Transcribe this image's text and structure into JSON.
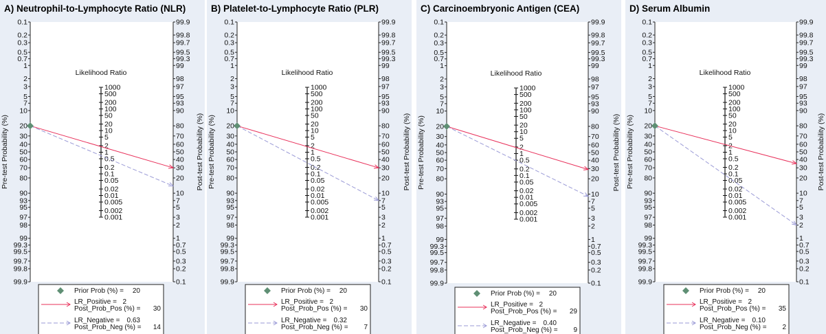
{
  "chart_data": [
    {
      "type": "nomogram",
      "title": "A) Neutrophil-to-Lymphocyte Ratio (NLR)",
      "left_axis_label": "Pre-test Probability (%)",
      "right_axis_label": "Post-test Probability (%)",
      "middle_axis_label": "Likelihood Ratio",
      "pre_ticks": [
        "0.1",
        "0.2",
        "0.3",
        "0.5",
        "0.7",
        "1",
        "2",
        "3",
        "5",
        "7",
        "10",
        "20",
        "30",
        "40",
        "50",
        "60",
        "70",
        "80",
        "90",
        "93",
        "95",
        "97",
        "98",
        "99",
        "99.3",
        "99.5",
        "99.7",
        "99.8",
        "99.9"
      ],
      "post_ticks": [
        "99.9",
        "99.8",
        "99.7",
        "99.5",
        "99.3",
        "99",
        "98",
        "97",
        "95",
        "93",
        "90",
        "80",
        "70",
        "60",
        "50",
        "40",
        "30",
        "20",
        "10",
        "7",
        "5",
        "3",
        "2",
        "1",
        "0.7",
        "0.5",
        "0.3",
        "0.2",
        "0.1"
      ],
      "lr_ticks": [
        "1000",
        "500",
        "200",
        "100",
        "50",
        "20",
        "10",
        "5",
        "2",
        "1",
        "0.5",
        "0.2",
        "0.1",
        "0.05",
        "0.02",
        "0.01",
        "0.005",
        "0.002",
        "0.001"
      ],
      "prior_prob": 20,
      "lr_positive": 2,
      "post_prob_pos": 30,
      "lr_negative": 0.63,
      "post_prob_neg": 14,
      "legend": {
        "prior": "Prior Prob (%) =",
        "prior_value": "20",
        "lr_pos": "LR_Positive =",
        "lr_pos_value": "2",
        "post_pos": "Post_Prob_Pos (%) =",
        "post_pos_value": "30",
        "lr_neg": "LR_Negative =",
        "lr_neg_value": "0.63",
        "post_neg": "Post_Prob_Neg (%) =",
        "post_neg_value": "14"
      }
    },
    {
      "type": "nomogram",
      "title": "B) Platelet-to-Lymphocyte Ratio (PLR)",
      "left_axis_label": "Pre-test Probability (%)",
      "right_axis_label": "Post-test Probability (%)",
      "middle_axis_label": "Likelihood Ratio",
      "pre_ticks": [
        "0.1",
        "0.2",
        "0.3",
        "0.5",
        "0.7",
        "1",
        "2",
        "3",
        "5",
        "7",
        "10",
        "20",
        "30",
        "40",
        "50",
        "60",
        "70",
        "80",
        "90",
        "93",
        "95",
        "97",
        "98",
        "99",
        "99.3",
        "99.5",
        "99.7",
        "99.8",
        "99.9"
      ],
      "post_ticks": [
        "99.9",
        "99.8",
        "99.7",
        "99.5",
        "99.3",
        "99",
        "98",
        "97",
        "95",
        "93",
        "90",
        "80",
        "70",
        "60",
        "50",
        "40",
        "30",
        "20",
        "10",
        "7",
        "5",
        "3",
        "2",
        "1",
        "0.7",
        "0.5",
        "0.3",
        "0.2",
        "0.1"
      ],
      "lr_ticks": [
        "1000",
        "500",
        "200",
        "100",
        "50",
        "20",
        "10",
        "5",
        "2",
        "1",
        "0.5",
        "0.2",
        "0.1",
        "0.05",
        "0.02",
        "0.01",
        "0.005",
        "0.002",
        "0.001"
      ],
      "prior_prob": 20,
      "lr_positive": 2,
      "post_prob_pos": 30,
      "lr_negative": 0.32,
      "post_prob_neg": 7,
      "legend": {
        "prior": "Prior Prob (%) =",
        "prior_value": "20",
        "lr_pos": "LR_Positive =",
        "lr_pos_value": "2",
        "post_pos": "Post_Prob_Pos (%) =",
        "post_pos_value": "30",
        "lr_neg": "LR_Negative =",
        "lr_neg_value": "0.32",
        "post_neg": "Post_Prob_Neg (%) =",
        "post_neg_value": "7"
      }
    },
    {
      "type": "nomogram",
      "title": "C) Carcinoembryonic Antigen (CEA)",
      "left_axis_label": "Pre-test Probability (%)",
      "right_axis_label": "Post-test Probability (%)",
      "middle_axis_label": "Likelihood Ratio",
      "pre_ticks": [
        "0.1",
        "0.2",
        "0.3",
        "0.5",
        "0.7",
        "1",
        "2",
        "3",
        "5",
        "7",
        "10",
        "20",
        "30",
        "40",
        "50",
        "60",
        "70",
        "80",
        "90",
        "93",
        "95",
        "97",
        "98",
        "99",
        "99.3",
        "99.5",
        "99.7",
        "99.8",
        "99.9"
      ],
      "post_ticks": [
        "99.9",
        "99.8",
        "99.7",
        "99.5",
        "99.3",
        "99",
        "98",
        "97",
        "95",
        "93",
        "90",
        "80",
        "70",
        "60",
        "50",
        "40",
        "30",
        "20",
        "10",
        "7",
        "5",
        "3",
        "2",
        "1",
        "0.7",
        "0.5",
        "0.3",
        "0.2",
        "0.1"
      ],
      "lr_ticks": [
        "1000",
        "500",
        "200",
        "100",
        "50",
        "20",
        "10",
        "5",
        "2",
        "1",
        "0.5",
        "0.2",
        "0.1",
        "0.05",
        "0.02",
        "0.01",
        "0.005",
        "0.002",
        "0.001"
      ],
      "prior_prob": 20,
      "lr_positive": 2,
      "post_prob_pos": 29,
      "lr_negative": 0.4,
      "post_prob_neg": 9,
      "legend": {
        "prior": "Prior Prob (%) =",
        "prior_value": "20",
        "lr_pos": "LR_Positive =",
        "lr_pos_value": "2",
        "post_pos": "Post_Prob_Pos (%) =",
        "post_pos_value": "29",
        "lr_neg": "LR_Negative =",
        "lr_neg_value": "0.40",
        "post_neg": "Post_Prob_Neg (%) =",
        "post_neg_value": "9"
      }
    },
    {
      "type": "nomogram",
      "title": "D) Serum Albumin",
      "left_axis_label": "Pre-test Probability (%)",
      "right_axis_label": "Post-test Probability (%)",
      "middle_axis_label": "Likelihood Ratio",
      "pre_ticks": [
        "0.1",
        "0.2",
        "0.3",
        "0.5",
        "0.7",
        "1",
        "2",
        "3",
        "5",
        "7",
        "10",
        "20",
        "30",
        "40",
        "50",
        "60",
        "70",
        "80",
        "90",
        "93",
        "95",
        "97",
        "98",
        "99",
        "99.3",
        "99.5",
        "99.7",
        "99.8",
        "99.9"
      ],
      "post_ticks": [
        "99.9",
        "99.8",
        "99.7",
        "99.5",
        "99.3",
        "99",
        "98",
        "97",
        "95",
        "93",
        "90",
        "80",
        "70",
        "60",
        "50",
        "40",
        "30",
        "20",
        "10",
        "7",
        "5",
        "3",
        "2",
        "1",
        "0.7",
        "0.5",
        "0.3",
        "0.2",
        "0.1"
      ],
      "lr_ticks": [
        "1000",
        "500",
        "200",
        "100",
        "50",
        "20",
        "10",
        "5",
        "2",
        "1",
        "0.5",
        "0.2",
        "0.1",
        "0.05",
        "0.02",
        "0.01",
        "0.005",
        "0.002",
        "0.001"
      ],
      "prior_prob": 20,
      "lr_positive": 2,
      "post_prob_pos": 35,
      "lr_negative": 0.1,
      "post_prob_neg": 2,
      "legend": {
        "prior": "Prior Prob (%) =",
        "prior_value": "20",
        "lr_pos": "LR_Positive =",
        "lr_pos_value": "2",
        "post_pos": "Post_Prob_Pos (%) =",
        "post_pos_value": "35",
        "lr_neg": "LR_Negative =",
        "lr_neg_value": "0.10",
        "post_neg": "Post_Prob_Neg (%) =",
        "post_neg_value": "2"
      }
    }
  ],
  "colors": {
    "positive_line": "#e8305a",
    "negative_line": "#9a9ad6",
    "prior_marker": "#5f8f74",
    "panel_bg": "#e9eef6",
    "plot_bg": "#ffffff"
  }
}
